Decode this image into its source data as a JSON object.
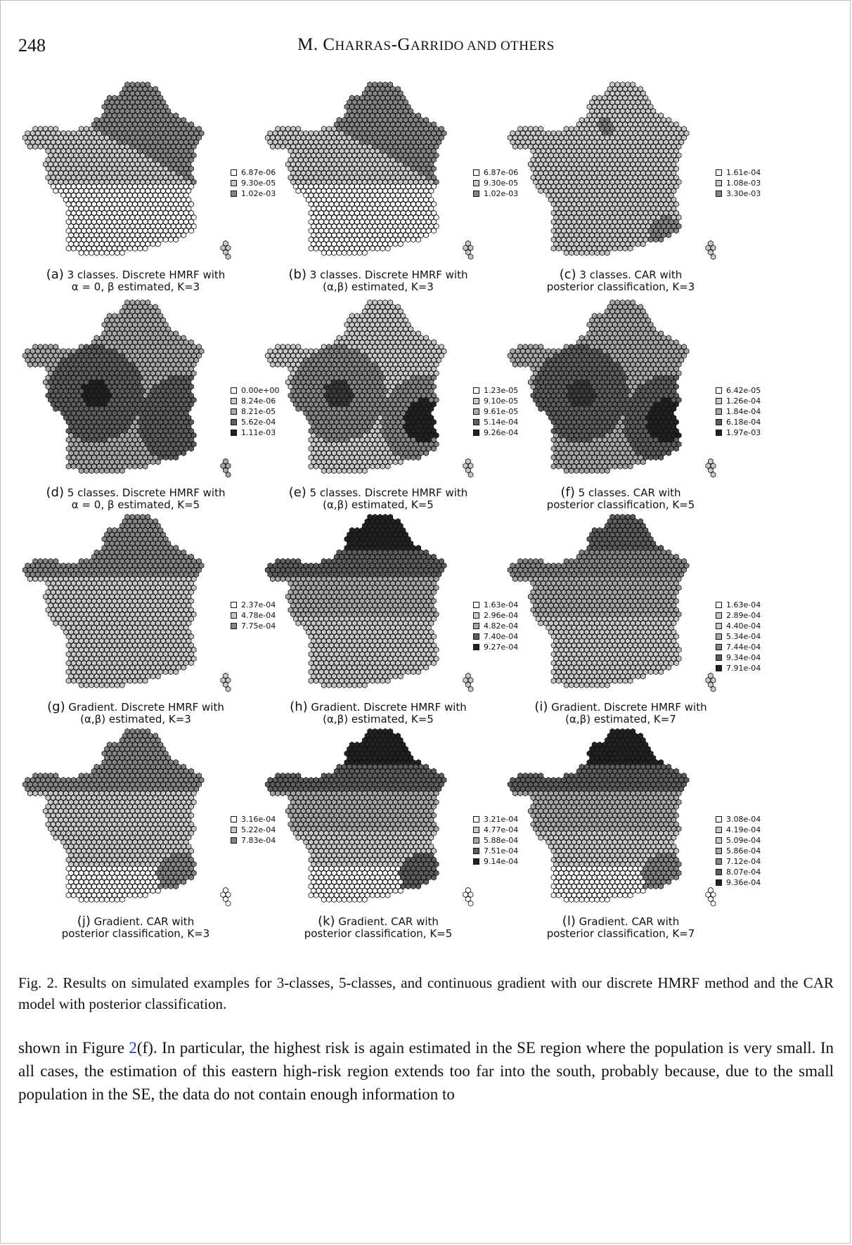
{
  "header": {
    "page_number": "248",
    "running_head_initial_1": "M. C",
    "running_head_small_1": "HARRAS",
    "running_head_mid": "-G",
    "running_head_small_2": "ARRIDO AND OTHERS"
  },
  "colors": {
    "class_scale": [
      "#ffffff",
      "#c9c9c9",
      "#a8a8a8",
      "#868686",
      "#5f5f5f",
      "#3c3c3c",
      "#222222"
    ],
    "hex_outline": "#111111",
    "link": "#1a3ec9"
  },
  "panels": [
    {
      "id": "a",
      "tag": "(a)",
      "caption_line1": "3 classes. Discrete HMRF with",
      "caption_line2": "α = 0, β estimated, K=3",
      "legend": [
        "6.87e-06",
        "9.30e-05",
        "1.02e-03"
      ],
      "legend_shades": [
        0,
        1,
        3
      ],
      "pattern": "north_band",
      "shades": {
        "north": 3,
        "center": 1,
        "south": 0,
        "corsica": 1
      }
    },
    {
      "id": "b",
      "tag": "(b)",
      "caption_line1": "3 classes. Discrete HMRF with",
      "caption_line2": "(α,β) estimated, K=3",
      "legend": [
        "6.87e-06",
        "9.30e-05",
        "1.02e-03"
      ],
      "legend_shades": [
        0,
        1,
        3
      ],
      "pattern": "north_band",
      "shades": {
        "north": 3,
        "center": 1,
        "south": 0,
        "corsica": 1
      }
    },
    {
      "id": "c",
      "tag": "(c)",
      "caption_line1": "3 classes. CAR with",
      "caption_line2": "posterior classification, K=3",
      "legend": [
        "1.61e-04",
        "1.08e-03",
        "3.30e-03"
      ],
      "legend_shades": [
        0,
        1,
        3
      ],
      "pattern": "mostly_light",
      "shades": {
        "base": 1,
        "spot": 3,
        "se": 3,
        "corsica": 1
      }
    },
    {
      "id": "d",
      "tag": "(d)",
      "caption_line1": "5 classes. Discrete HMRF with",
      "caption_line2": "α = 0, β estimated, K=5",
      "legend": [
        "0.00e+00",
        "8.24e-06",
        "8.21e-05",
        "5.62e-04",
        "1.11e-03"
      ],
      "legend_shades": [
        0,
        1,
        2,
        4,
        6
      ],
      "pattern": "two_blobs",
      "shades": {
        "base": 2,
        "west": 4,
        "west_core": 6,
        "east": 4,
        "east_core": 4,
        "corsica": 2
      }
    },
    {
      "id": "e",
      "tag": "(e)",
      "caption_line1": "5 classes. Discrete HMRF with",
      "caption_line2": "(α,β) estimated, K=5",
      "legend": [
        "1.23e-05",
        "9.10e-05",
        "9.61e-05",
        "5.14e-04",
        "9.26e-04"
      ],
      "legend_shades": [
        0,
        1,
        2,
        4,
        6
      ],
      "pattern": "two_blobs",
      "shades": {
        "base": 1,
        "west": 3,
        "west_core": 5,
        "east": 3,
        "east_core": 6,
        "corsica": 1
      }
    },
    {
      "id": "f",
      "tag": "(f)",
      "caption_line1": "5 classes. CAR with",
      "caption_line2": "posterior classification, K=5",
      "legend": [
        "6.42e-05",
        "1.26e-04",
        "1.84e-04",
        "6.18e-04",
        "1.97e-03"
      ],
      "legend_shades": [
        0,
        1,
        2,
        4,
        6
      ],
      "pattern": "two_blobs",
      "shades": {
        "base": 2,
        "west": 4,
        "west_core": 5,
        "east": 4,
        "east_core": 6,
        "corsica": 1
      }
    },
    {
      "id": "g",
      "tag": "(g)",
      "caption_line1": "Gradient. Discrete HMRF with",
      "caption_line2": "(α,β) estimated, K=3",
      "legend": [
        "2.37e-04",
        "4.78e-04",
        "7.75e-04"
      ],
      "legend_shades": [
        0,
        1,
        3
      ],
      "pattern": "gradient",
      "shades": {
        "top": 3,
        "upper": 3,
        "middle": 1,
        "lower": 1,
        "bottom": 1,
        "corsica": 1
      }
    },
    {
      "id": "h",
      "tag": "(h)",
      "caption_line1": "Gradient. Discrete HMRF with",
      "caption_line2": "(α,β) estimated, K=5",
      "legend": [
        "1.63e-04",
        "2.96e-04",
        "4.82e-04",
        "7.40e-04",
        "9.27e-04"
      ],
      "legend_shades": [
        0,
        1,
        2,
        4,
        6
      ],
      "pattern": "gradient",
      "shades": {
        "top": 6,
        "upper": 4,
        "middle": 2,
        "lower": 1,
        "bottom": 1,
        "corsica": 1
      }
    },
    {
      "id": "i",
      "tag": "(i)",
      "caption_line1": "Gradient. Discrete HMRF with",
      "caption_line2": "(α,β) estimated, K=7",
      "legend": [
        "1.63e-04",
        "2.89e-04",
        "4.40e-04",
        "5.34e-04",
        "7.44e-04",
        "9.34e-04",
        "7.91e-04"
      ],
      "legend_shades": [
        0,
        1,
        1,
        2,
        3,
        4,
        6
      ],
      "pattern": "gradient",
      "shades": {
        "top": 4,
        "upper": 3,
        "middle": 2,
        "lower": 1,
        "bottom": 1,
        "corsica": 1
      }
    },
    {
      "id": "j",
      "tag": "(j)",
      "caption_line1": "Gradient. CAR with",
      "caption_line2": "posterior classification, K=3",
      "legend": [
        "3.16e-04",
        "5.22e-04",
        "7.83e-04"
      ],
      "legend_shades": [
        0,
        1,
        3
      ],
      "pattern": "gradient_se",
      "shades": {
        "top": 3,
        "upper": 3,
        "middle": 1,
        "lower": 1,
        "bottom": 0,
        "se": 3,
        "corsica": 0
      }
    },
    {
      "id": "k",
      "tag": "(k)",
      "caption_line1": "Gradient. CAR with",
      "caption_line2": "posterior classification, K=5",
      "legend": [
        "3.21e-04",
        "4.77e-04",
        "5.88e-04",
        "7.51e-04",
        "9.14e-04"
      ],
      "legend_shades": [
        0,
        1,
        2,
        4,
        6
      ],
      "pattern": "gradient_se",
      "shades": {
        "top": 6,
        "upper": 4,
        "middle": 2,
        "lower": 1,
        "bottom": 0,
        "se": 4,
        "corsica": 0
      }
    },
    {
      "id": "l",
      "tag": "(l)",
      "caption_line1": "Gradient. CAR with",
      "caption_line2": "posterior classification, K=7",
      "legend": [
        "3.08e-04",
        "4.19e-04",
        "5.09e-04",
        "5.86e-04",
        "7.12e-04",
        "8.07e-04",
        "9.36e-04"
      ],
      "legend_shades": [
        0,
        1,
        1,
        2,
        3,
        4,
        6
      ],
      "pattern": "gradient_se",
      "shades": {
        "top": 6,
        "upper": 4,
        "middle": 2,
        "lower": 1,
        "bottom": 0,
        "se": 3,
        "corsica": 0
      }
    }
  ],
  "figure_caption": "Fig. 2. Results on simulated examples for 3-classes, 5-classes, and continuous gradient with our discrete HMRF method and the CAR model with posterior classification.",
  "body": {
    "prefix": "shown in Figure ",
    "fig_ref_num": "2",
    "fig_ref_sub": "(f)",
    "suffix": ". In particular, the highest risk is again estimated in the SE region where the population is very small. In all cases, the estimation of this eastern high-risk region extends too far into the south, probably because, due to the small population in the SE, the data do not contain enough information to"
  }
}
